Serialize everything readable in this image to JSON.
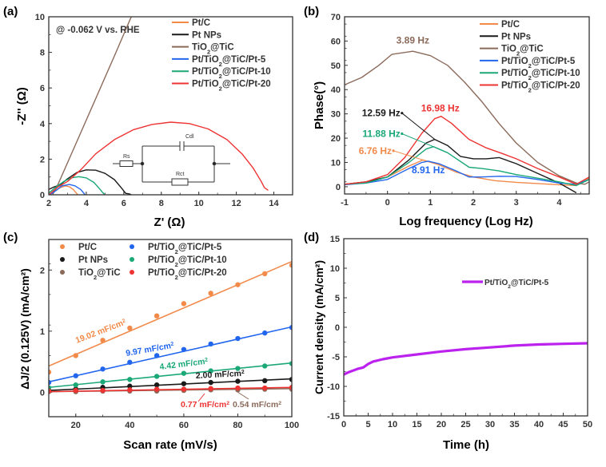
{
  "figure": {
    "panels": [
      "(a)",
      "(b)",
      "(c)",
      "(d)"
    ]
  },
  "colors": {
    "PtC": "#f28a4a",
    "PtNPs": "#1a1a1a",
    "TiO2TiC": "#8b6a5a",
    "Pt5": "#2266ee",
    "Pt10": "#1aa877",
    "Pt20": "#ee3333",
    "stability": "#bb22ee",
    "axis": "#333333"
  },
  "chart_data": [
    {
      "id": "a",
      "type": "line",
      "panel_label": "(a)",
      "title": "",
      "annotation": "@ -0.062 V vs. RHE",
      "xlabel": "Z' (Ω)",
      "ylabel": "-Z'' (Ω)",
      "xlim": [
        2,
        15
      ],
      "ylim": [
        0,
        10
      ],
      "xticks": [
        2,
        4,
        6,
        8,
        10,
        12,
        14
      ],
      "yticks": [
        0,
        2,
        4,
        6,
        8,
        10
      ],
      "legend": "top-right",
      "inset": {
        "labels": [
          "Rs",
          "Cdl",
          "Rct"
        ]
      },
      "series": [
        {
          "name": "Pt/C",
          "key": "PtC",
          "points": [
            [
              2.0,
              0.0
            ],
            [
              2.3,
              0.2
            ],
            [
              2.6,
              0.4
            ],
            [
              2.9,
              0.5
            ],
            [
              3.1,
              0.45
            ],
            [
              3.3,
              0.3
            ],
            [
              3.45,
              0.12
            ],
            [
              3.55,
              0.0
            ]
          ]
        },
        {
          "name": "Pt NPs",
          "key": "PtNPs",
          "points": [
            [
              2.0,
              0.3
            ],
            [
              2.3,
              0.45
            ],
            [
              2.6,
              0.55
            ],
            [
              3.0,
              0.9
            ],
            [
              3.5,
              1.25
            ],
            [
              4.0,
              1.4
            ],
            [
              4.5,
              1.38
            ],
            [
              5.0,
              1.2
            ],
            [
              5.5,
              0.85
            ],
            [
              5.9,
              0.35
            ],
            [
              6.1,
              0.08
            ],
            [
              6.3,
              0.05
            ],
            [
              6.4,
              0.0
            ]
          ]
        },
        {
          "name": "TiO2@TiC",
          "key": "TiO2TiC",
          "points": [
            [
              2.2,
              0.0
            ],
            [
              2.5,
              0.6
            ],
            [
              3.5,
              3.0
            ],
            [
              4.5,
              5.4
            ],
            [
              5.5,
              7.8
            ],
            [
              6.4,
              10.0
            ]
          ]
        },
        {
          "name": "Pt/TiO2@TiC/Pt-5",
          "key": "Pt5",
          "points": [
            [
              2.0,
              0.0
            ],
            [
              2.2,
              0.1
            ],
            [
              2.4,
              0.25
            ],
            [
              2.7,
              0.5
            ],
            [
              3.1,
              0.58
            ],
            [
              3.4,
              0.5
            ],
            [
              3.7,
              0.3
            ],
            [
              3.9,
              0.05
            ],
            [
              3.95,
              0.0
            ]
          ]
        },
        {
          "name": "Pt/TiO2@TiC/Pt-10",
          "key": "Pt10",
          "points": [
            [
              2.0,
              0.1
            ],
            [
              2.4,
              0.45
            ],
            [
              2.8,
              0.75
            ],
            [
              3.2,
              0.95
            ],
            [
              3.6,
              1.02
            ],
            [
              4.0,
              0.95
            ],
            [
              4.4,
              0.7
            ],
            [
              4.7,
              0.35
            ],
            [
              4.9,
              0.1
            ],
            [
              5.0,
              0.0
            ]
          ]
        },
        {
          "name": "Pt/TiO2@TiC/Pt-20",
          "key": "Pt20",
          "points": [
            [
              2.0,
              0.0
            ],
            [
              2.5,
              0.45
            ],
            [
              3.0,
              0.75
            ],
            [
              3.7,
              1.4
            ],
            [
              4.5,
              2.3
            ],
            [
              5.5,
              3.1
            ],
            [
              6.5,
              3.65
            ],
            [
              7.5,
              3.95
            ],
            [
              8.5,
              4.08
            ],
            [
              9.5,
              4.0
            ],
            [
              10.5,
              3.7
            ],
            [
              11.5,
              3.1
            ],
            [
              12.3,
              2.3
            ],
            [
              12.9,
              1.5
            ],
            [
              13.3,
              0.8
            ],
            [
              13.5,
              0.4
            ],
            [
              13.7,
              0.25
            ]
          ]
        }
      ]
    },
    {
      "id": "b",
      "type": "line",
      "panel_label": "(b)",
      "title": "",
      "xlabel": "Log frequency (Log Hz)",
      "ylabel": "Phase(°)",
      "xlim": [
        -1,
        4.7
      ],
      "ylim": [
        -3,
        70
      ],
      "xticks": [
        -1,
        0,
        1,
        2,
        3,
        4
      ],
      "yticks": [
        0,
        10,
        20,
        30,
        40,
        50,
        60,
        70
      ],
      "legend": "top-right",
      "annotations": [
        {
          "text": "3.89 Hz",
          "key": "TiO2TiC",
          "x": 0.59,
          "y": 59
        },
        {
          "text": "12.59 Hz",
          "key": "PtNPs",
          "x": 0.3,
          "y": 29,
          "arrow_to": [
            1.1,
            19.5
          ]
        },
        {
          "text": "16.98 Hz",
          "key": "Pt20",
          "x": 1.23,
          "y": 31
        },
        {
          "text": "11.88 Hz",
          "key": "Pt10",
          "x": 0.3,
          "y": 20.5,
          "arrow_to": [
            1.07,
            16.5
          ]
        },
        {
          "text": "6.76 Hz",
          "key": "PtC",
          "x": 0.1,
          "y": 13.5,
          "arrow_to": [
            0.83,
            11
          ]
        },
        {
          "text": "8.91 Hz",
          "key": "Pt5",
          "x": 0.95,
          "y": 5.5
        }
      ],
      "series": [
        {
          "name": "Pt/C",
          "key": "PtC",
          "points": [
            [
              -1,
              1
            ],
            [
              -0.5,
              2
            ],
            [
              0,
              4
            ],
            [
              0.5,
              8.5
            ],
            [
              0.83,
              11
            ],
            [
              1.2,
              9
            ],
            [
              1.6,
              6
            ],
            [
              2,
              4
            ],
            [
              2.5,
              2.5
            ],
            [
              3,
              1.8
            ],
            [
              3.5,
              1.3
            ],
            [
              4,
              0.8
            ],
            [
              4.4,
              0.5
            ],
            [
              4.7,
              3.5
            ]
          ]
        },
        {
          "name": "Pt NPs",
          "key": "PtNPs",
          "points": [
            [
              -1,
              1
            ],
            [
              -0.5,
              2
            ],
            [
              0,
              4
            ],
            [
              0.5,
              11
            ],
            [
              0.9,
              18
            ],
            [
              1.1,
              19.5
            ],
            [
              1.4,
              17
            ],
            [
              1.7,
              12.5
            ],
            [
              2,
              11.5
            ],
            [
              2.3,
              11.5
            ],
            [
              2.6,
              12
            ],
            [
              3,
              9.5
            ],
            [
              3.5,
              5.5
            ],
            [
              4,
              1.5
            ],
            [
              4.4,
              -2.5
            ]
          ]
        },
        {
          "name": "TiO2@TiC",
          "key": "TiO2TiC",
          "points": [
            [
              -1,
              42
            ],
            [
              -0.6,
              45
            ],
            [
              -0.2,
              50
            ],
            [
              0.1,
              54.5
            ],
            [
              0.59,
              55.8
            ],
            [
              1,
              54
            ],
            [
              1.4,
              50
            ],
            [
              1.8,
              43
            ],
            [
              2.2,
              35
            ],
            [
              2.6,
              26
            ],
            [
              3,
              18
            ],
            [
              3.5,
              10
            ],
            [
              4,
              4.5
            ],
            [
              4.4,
              1.5
            ],
            [
              4.6,
              1
            ],
            [
              4.7,
              2
            ]
          ]
        },
        {
          "name": "Pt/TiO2@TiC/Pt-5",
          "key": "Pt5",
          "points": [
            [
              -1,
              0.8
            ],
            [
              -0.5,
              1.5
            ],
            [
              0,
              3
            ],
            [
              0.5,
              7.5
            ],
            [
              0.8,
              10
            ],
            [
              0.95,
              10.5
            ],
            [
              1.2,
              9.5
            ],
            [
              1.6,
              6.5
            ],
            [
              1.9,
              4
            ],
            [
              2.2,
              4
            ],
            [
              2.6,
              4.3
            ],
            [
              3,
              4.2
            ],
            [
              3.5,
              3
            ],
            [
              4,
              1.5
            ],
            [
              4.4,
              1
            ],
            [
              4.7,
              3
            ]
          ]
        },
        {
          "name": "Pt/TiO2@TiC/Pt-10",
          "key": "Pt10",
          "points": [
            [
              -1,
              1
            ],
            [
              -0.5,
              1.5
            ],
            [
              0,
              4
            ],
            [
              0.5,
              10
            ],
            [
              0.9,
              15.5
            ],
            [
              1.07,
              16.5
            ],
            [
              1.4,
              14
            ],
            [
              1.9,
              8
            ],
            [
              2.2,
              7.5
            ],
            [
              2.6,
              6.5
            ],
            [
              3,
              5
            ],
            [
              3.5,
              3.5
            ],
            [
              4,
              2
            ],
            [
              4.4,
              0.5
            ],
            [
              4.7,
              3
            ]
          ]
        },
        {
          "name": "Pt/TiO2@TiC/Pt-20",
          "key": "Pt20",
          "points": [
            [
              -1,
              1
            ],
            [
              -0.5,
              2
            ],
            [
              0,
              5
            ],
            [
              0.4,
              12
            ],
            [
              0.8,
              22
            ],
            [
              1.1,
              28
            ],
            [
              1.25,
              29
            ],
            [
              1.5,
              26
            ],
            [
              1.9,
              19.5
            ],
            [
              2.3,
              16
            ],
            [
              2.7,
              13.5
            ],
            [
              3,
              11.5
            ],
            [
              3.5,
              7.5
            ],
            [
              4,
              4
            ],
            [
              4.4,
              1
            ],
            [
              4.7,
              4
            ]
          ]
        }
      ]
    },
    {
      "id": "c",
      "type": "scatter",
      "panel_label": "(c)",
      "title": "",
      "xlabel": "Scan rate (mV/s)",
      "ylabel": "ΔJ/2 (0.125V) (mA/cm²)",
      "xlim": [
        10,
        100
      ],
      "ylim": [
        -0.4,
        2.5
      ],
      "xticks": [
        20,
        40,
        60,
        80,
        100
      ],
      "yticks": [
        0,
        1,
        2
      ],
      "legend": "top",
      "x": [
        10,
        20,
        30,
        40,
        50,
        60,
        70,
        80,
        90,
        100
      ],
      "series": [
        {
          "name": "Pt/C",
          "key": "PtC",
          "values": [
            0.33,
            0.6,
            0.85,
            1.05,
            1.25,
            1.45,
            1.62,
            1.76,
            1.94,
            2.08
          ],
          "fit": [
            0.43,
            2.14
          ],
          "label": "19.02 mF/cm²"
        },
        {
          "name": "Pt NPs",
          "key": "PtNPs",
          "values": [
            0.03,
            0.05,
            0.08,
            0.1,
            0.12,
            0.14,
            0.16,
            0.18,
            0.19,
            0.21
          ],
          "fit": [
            0.03,
            0.22
          ],
          "label": "2.00 mF/cm²"
        },
        {
          "name": "TiO2@TiC",
          "key": "TiO2TiC",
          "values": [
            0.01,
            0.01,
            0.02,
            0.02,
            0.02,
            0.03,
            0.04,
            0.04,
            0.05,
            0.05
          ],
          "fit": [
            0.01,
            0.06
          ],
          "label": "0.54 mF/cm²"
        },
        {
          "name": "Pt/TiO2@TiC/Pt-5",
          "key": "Pt5",
          "values": [
            0.16,
            0.27,
            0.38,
            0.49,
            0.6,
            0.7,
            0.79,
            0.88,
            0.97,
            1.06
          ],
          "fit": [
            0.17,
            1.07
          ],
          "label": "9.97 mF/cm²"
        },
        {
          "name": "Pt/TiO2@TiC/Pt-10",
          "key": "Pt10",
          "values": [
            0.07,
            0.12,
            0.17,
            0.21,
            0.26,
            0.31,
            0.35,
            0.39,
            0.43,
            0.47
          ],
          "fit": [
            0.08,
            0.48
          ],
          "label": "4.42 mF/cm²"
        },
        {
          "name": "Pt/TiO2@TiC/Pt-20",
          "key": "Pt20",
          "values": [
            0.02,
            0.03,
            0.03,
            0.04,
            0.05,
            0.05,
            0.06,
            0.07,
            0.07,
            0.08
          ],
          "fit": [
            0.01,
            0.08
          ],
          "label": "0.77 mF/cm²"
        }
      ]
    },
    {
      "id": "d",
      "type": "line",
      "panel_label": "(d)",
      "title": "",
      "xlabel": "Time (h)",
      "ylabel": "Current density (mA/cm²)",
      "xlim": [
        0,
        50
      ],
      "ylim": [
        -15,
        15
      ],
      "xticks": [
        0,
        5,
        10,
        15,
        20,
        25,
        30,
        35,
        40,
        45,
        50
      ],
      "yticks": [
        -15,
        -10,
        -5,
        0,
        5,
        10,
        15
      ],
      "legend": "top-right",
      "series": [
        {
          "name": "Pt/TiO2@TiC/Pt-5",
          "key": "stability",
          "points": [
            [
              0,
              -8
            ],
            [
              1,
              -7.6
            ],
            [
              2,
              -7.3
            ],
            [
              3,
              -7
            ],
            [
              4,
              -6.8
            ],
            [
              5,
              -6.2
            ],
            [
              6,
              -5.8
            ],
            [
              8,
              -5.4
            ],
            [
              10,
              -5.1
            ],
            [
              15,
              -4.6
            ],
            [
              20,
              -4.1
            ],
            [
              25,
              -3.7
            ],
            [
              30,
              -3.4
            ],
            [
              35,
              -3.1
            ],
            [
              40,
              -2.9
            ],
            [
              45,
              -2.8
            ],
            [
              50,
              -2.7
            ]
          ]
        }
      ]
    }
  ]
}
